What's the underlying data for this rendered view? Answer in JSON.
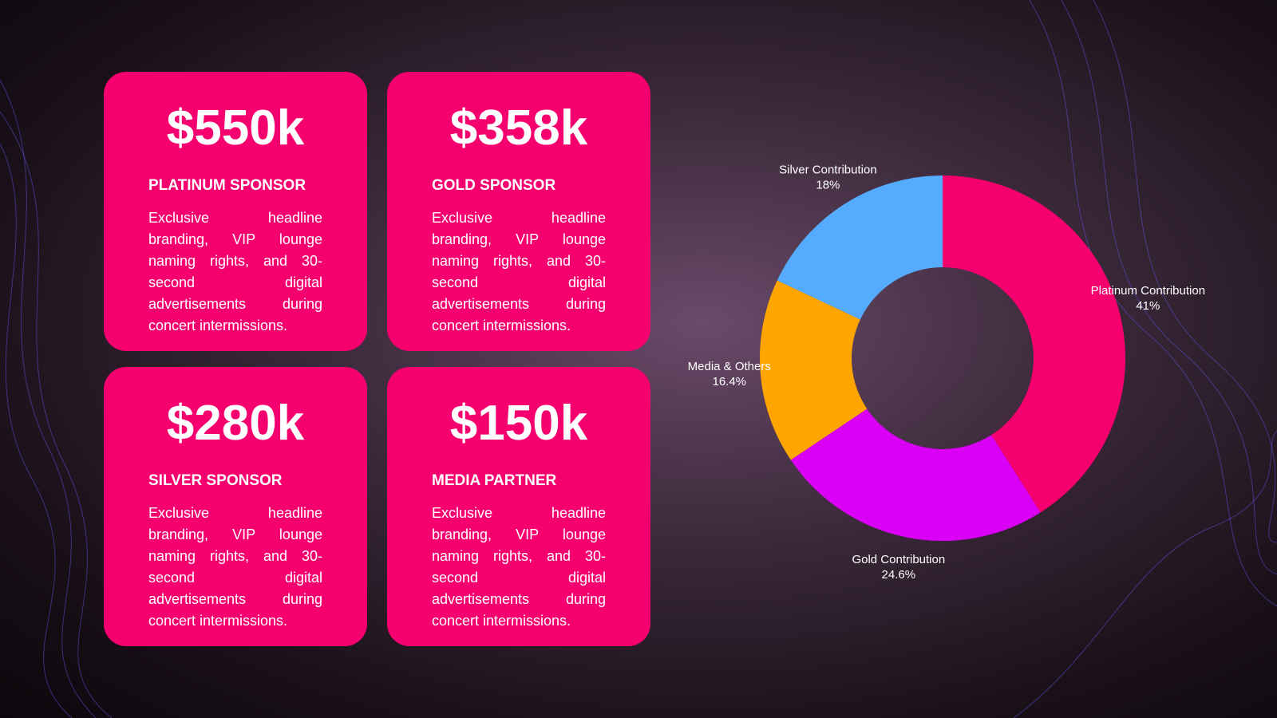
{
  "cards": [
    {
      "amount": "$550k",
      "title": "PLATINUM SPONSOR",
      "description": "Exclusive headline branding, VIP lounge naming rights, and 30-second digital advertisements during concert intermissions."
    },
    {
      "amount": "$358k",
      "title": "GOLD SPONSOR",
      "description": "Exclusive headline branding, VIP lounge naming rights, and 30-second digital advertisements during concert intermissions."
    },
    {
      "amount": "$280k",
      "title": "SILVER SPONSOR",
      "description": "Exclusive headline branding, VIP lounge naming rights, and 30-second digital advertisements during concert intermissions."
    },
    {
      "amount": "$150k",
      "title": "MEDIA PARTNER",
      "description": "Exclusive headline branding, VIP lounge naming rights, and 30-second digital advertisements during concert intermissions."
    }
  ],
  "chart_data": {
    "type": "donut",
    "categories": [
      "Platinum Contribution",
      "Gold Contribution",
      "Media & Others",
      "Silver Contribution"
    ],
    "values": [
      41,
      24.6,
      16.4,
      18
    ],
    "value_labels": [
      "41%",
      "24.6%",
      "16.4%",
      "18%"
    ],
    "colors": [
      "#f5006e",
      "#d900f5",
      "#ffa500",
      "#55acff"
    ]
  }
}
